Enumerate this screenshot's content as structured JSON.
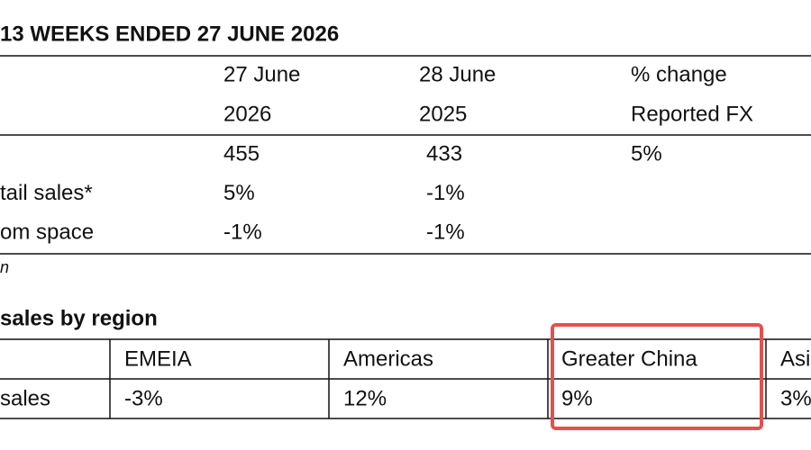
{
  "header": {
    "title": "13 WEEKS ENDED 27 JUNE 2026"
  },
  "top_table": {
    "header_line1": [
      "27 June",
      "28 June",
      "% change"
    ],
    "header_line2": [
      "2026",
      "2025",
      "Reported FX"
    ],
    "rows": [
      {
        "cells": [
          "455",
          "433",
          "5%"
        ]
      },
      {
        "label": "tail sales*",
        "cells": [
          "5%",
          "-1%"
        ]
      },
      {
        "label": "om space",
        "cells": [
          "-1%",
          "-1%"
        ]
      }
    ],
    "footnote": "n"
  },
  "region_table": {
    "title": "sales by region",
    "headers": [
      "EMEIA",
      "Americas",
      "Greater China",
      "Asi"
    ],
    "row_label": "sales",
    "values": [
      "-3%",
      "12%",
      "9%",
      "3%"
    ]
  }
}
